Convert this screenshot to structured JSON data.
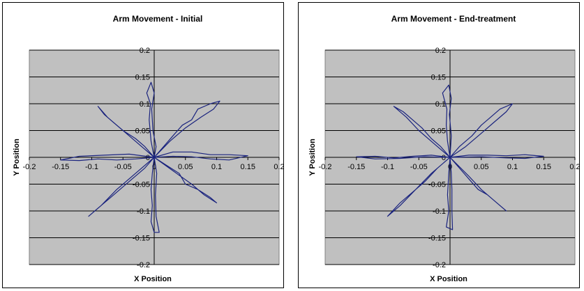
{
  "charts": [
    {
      "type": "line",
      "title": "Arm Movement - Initial",
      "xlabel": "X Position",
      "ylabel": "Y Position",
      "xlim": [
        -0.2,
        0.2
      ],
      "ylim": [
        -0.2,
        0.2
      ],
      "x_ticks": [
        "-0.2",
        "-0.15",
        "-0.1",
        "-0.05",
        "0",
        "0.05",
        "0.1",
        "0.15",
        "0.2"
      ],
      "y_ticks": [
        "0.2",
        "0.15",
        "0.1",
        "0.05",
        "0",
        "-0.05",
        "-0.1",
        "-0.15",
        "-0.2"
      ],
      "grid": "horizontal",
      "plot_background": "#c0c0c0",
      "line_color": "#1a237e",
      "paths": [
        [
          [
            0,
            0
          ],
          [
            -0.005,
            0.03
          ],
          [
            -0.008,
            0.07
          ],
          [
            -0.006,
            0.1
          ],
          [
            -0.012,
            0.12
          ],
          [
            -0.005,
            0.14
          ],
          [
            0,
            0.12
          ],
          [
            -0.004,
            0.09
          ],
          [
            -0.002,
            0.05
          ],
          [
            0.003,
            0.02
          ],
          [
            0,
            0
          ]
        ],
        [
          [
            0,
            0
          ],
          [
            0.015,
            0.02
          ],
          [
            0.03,
            0.04
          ],
          [
            0.045,
            0.06
          ],
          [
            0.06,
            0.07
          ],
          [
            0.07,
            0.09
          ],
          [
            0.09,
            0.1
          ],
          [
            0.105,
            0.105
          ],
          [
            0.095,
            0.09
          ],
          [
            0.075,
            0.075
          ],
          [
            0.05,
            0.055
          ],
          [
            0.025,
            0.03
          ],
          [
            0,
            0
          ]
        ],
        [
          [
            0,
            0
          ],
          [
            0.03,
            0.01
          ],
          [
            0.06,
            0.01
          ],
          [
            0.09,
            0.005
          ],
          [
            0.12,
            0.005
          ],
          [
            0.15,
            0.003
          ],
          [
            0.12,
            -0.005
          ],
          [
            0.09,
            -0.003
          ],
          [
            0.06,
            0.001
          ],
          [
            0.03,
            0.002
          ],
          [
            0,
            0
          ]
        ],
        [
          [
            0,
            0
          ],
          [
            0.02,
            -0.015
          ],
          [
            0.04,
            -0.03
          ],
          [
            0.05,
            -0.05
          ],
          [
            0.07,
            -0.06
          ],
          [
            0.09,
            -0.075
          ],
          [
            0.1,
            -0.085
          ],
          [
            0.08,
            -0.07
          ],
          [
            0.06,
            -0.05
          ],
          [
            0.03,
            -0.025
          ],
          [
            0,
            0
          ]
        ],
        [
          [
            0,
            0
          ],
          [
            -0.003,
            -0.03
          ],
          [
            -0.005,
            -0.06
          ],
          [
            -0.003,
            -0.09
          ],
          [
            -0.005,
            -0.12
          ],
          [
            0,
            -0.14
          ],
          [
            0.008,
            -0.14
          ],
          [
            0.003,
            -0.11
          ],
          [
            0.002,
            -0.07
          ],
          [
            0.004,
            -0.03
          ],
          [
            0,
            0
          ]
        ],
        [
          [
            0,
            0
          ],
          [
            -0.015,
            -0.02
          ],
          [
            -0.03,
            -0.035
          ],
          [
            -0.05,
            -0.055
          ],
          [
            -0.07,
            -0.075
          ],
          [
            -0.09,
            -0.095
          ],
          [
            -0.105,
            -0.11
          ],
          [
            -0.085,
            -0.09
          ],
          [
            -0.06,
            -0.06
          ],
          [
            -0.03,
            -0.03
          ],
          [
            0,
            0
          ]
        ],
        [
          [
            0,
            0
          ],
          [
            -0.03,
            -0.003
          ],
          [
            -0.06,
            -0.005
          ],
          [
            -0.09,
            -0.003
          ],
          [
            -0.12,
            -0.006
          ],
          [
            -0.15,
            -0.005
          ],
          [
            -0.12,
            0.002
          ],
          [
            -0.08,
            0.004
          ],
          [
            -0.04,
            0.006
          ],
          [
            0,
            0
          ]
        ],
        [
          [
            0,
            0
          ],
          [
            -0.015,
            0.02
          ],
          [
            -0.03,
            0.035
          ],
          [
            -0.05,
            0.05
          ],
          [
            -0.065,
            0.065
          ],
          [
            -0.08,
            0.08
          ],
          [
            -0.09,
            0.095
          ],
          [
            -0.075,
            0.075
          ],
          [
            -0.055,
            0.055
          ],
          [
            -0.03,
            0.03
          ],
          [
            0,
            0
          ]
        ]
      ]
    },
    {
      "type": "line",
      "title": "Arm Movement - End-treatment",
      "xlabel": "X Position",
      "ylabel": "Y Position",
      "xlim": [
        -0.2,
        0.2
      ],
      "ylim": [
        -0.2,
        0.2
      ],
      "x_ticks": [
        "-0.2",
        "-0.15",
        "-0.1",
        "-0.05",
        "0",
        "0.05",
        "0.1",
        "0.15",
        "0.2"
      ],
      "y_ticks": [
        "0.2",
        "0.15",
        "0.1",
        "0.05",
        "0",
        "-0.05",
        "-0.1",
        "-0.15",
        "-0.2"
      ],
      "grid": "horizontal",
      "plot_background": "#c0c0c0",
      "line_color": "#1a237e",
      "paths": [
        [
          [
            0,
            0
          ],
          [
            -0.004,
            0.03
          ],
          [
            -0.006,
            0.06
          ],
          [
            -0.005,
            0.09
          ],
          [
            -0.012,
            0.12
          ],
          [
            -0.002,
            0.135
          ],
          [
            0.002,
            0.11
          ],
          [
            -0.001,
            0.08
          ],
          [
            0.002,
            0.04
          ],
          [
            0,
            0
          ]
        ],
        [
          [
            0,
            0
          ],
          [
            0.015,
            0.02
          ],
          [
            0.035,
            0.04
          ],
          [
            0.05,
            0.06
          ],
          [
            0.065,
            0.075
          ],
          [
            0.08,
            0.09
          ],
          [
            0.1,
            0.1
          ],
          [
            0.09,
            0.085
          ],
          [
            0.07,
            0.065
          ],
          [
            0.05,
            0.045
          ],
          [
            0.025,
            0.02
          ],
          [
            0,
            0
          ]
        ],
        [
          [
            0,
            0
          ],
          [
            0.03,
            0.004
          ],
          [
            0.06,
            0.004
          ],
          [
            0.09,
            0.003
          ],
          [
            0.12,
            0.005
          ],
          [
            0.15,
            0.002
          ],
          [
            0.12,
            -0.002
          ],
          [
            0.09,
            -0.001
          ],
          [
            0.05,
            0.001
          ],
          [
            0,
            0
          ]
        ],
        [
          [
            0,
            0
          ],
          [
            0.015,
            -0.02
          ],
          [
            0.03,
            -0.04
          ],
          [
            0.045,
            -0.06
          ],
          [
            0.06,
            -0.07
          ],
          [
            0.075,
            -0.085
          ],
          [
            0.09,
            -0.1
          ],
          [
            0.07,
            -0.08
          ],
          [
            0.05,
            -0.06
          ],
          [
            0.03,
            -0.035
          ],
          [
            0,
            0
          ]
        ],
        [
          [
            0,
            0
          ],
          [
            -0.002,
            -0.03
          ],
          [
            -0.004,
            -0.07
          ],
          [
            -0.002,
            -0.1
          ],
          [
            -0.006,
            -0.13
          ],
          [
            0.004,
            -0.135
          ],
          [
            0.003,
            -0.1
          ],
          [
            0.003,
            -0.06
          ],
          [
            0.002,
            -0.03
          ],
          [
            0,
            0
          ]
        ],
        [
          [
            0,
            0
          ],
          [
            -0.02,
            -0.02
          ],
          [
            -0.04,
            -0.045
          ],
          [
            -0.06,
            -0.065
          ],
          [
            -0.08,
            -0.085
          ],
          [
            -0.1,
            -0.11
          ],
          [
            -0.08,
            -0.09
          ],
          [
            -0.055,
            -0.06
          ],
          [
            -0.03,
            -0.03
          ],
          [
            0,
            0
          ]
        ],
        [
          [
            0,
            0
          ],
          [
            -0.03,
            0.004
          ],
          [
            -0.06,
            0.002
          ],
          [
            -0.09,
            -0.001
          ],
          [
            -0.12,
            0.002
          ],
          [
            -0.15,
            0.001
          ],
          [
            -0.12,
            -0.003
          ],
          [
            -0.08,
            -0.002
          ],
          [
            -0.04,
            0.001
          ],
          [
            0,
            0
          ]
        ],
        [
          [
            0,
            0
          ],
          [
            -0.015,
            0.02
          ],
          [
            -0.03,
            0.035
          ],
          [
            -0.045,
            0.055
          ],
          [
            -0.06,
            0.07
          ],
          [
            -0.075,
            0.085
          ],
          [
            -0.09,
            0.095
          ],
          [
            -0.07,
            0.075
          ],
          [
            -0.05,
            0.05
          ],
          [
            -0.025,
            0.025
          ],
          [
            0,
            0
          ]
        ]
      ]
    }
  ]
}
